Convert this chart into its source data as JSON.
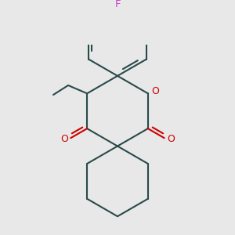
{
  "background_color": "#e8e8e8",
  "bond_color": "#2a4a4a",
  "oxygen_color": "#cc0000",
  "fluorine_color": "#cc44cc",
  "bond_width": 1.5,
  "figsize": [
    3.0,
    3.0
  ],
  "dpi": 100,
  "xlim": [
    -1.1,
    1.1
  ],
  "ylim": [
    -1.3,
    1.5
  ]
}
